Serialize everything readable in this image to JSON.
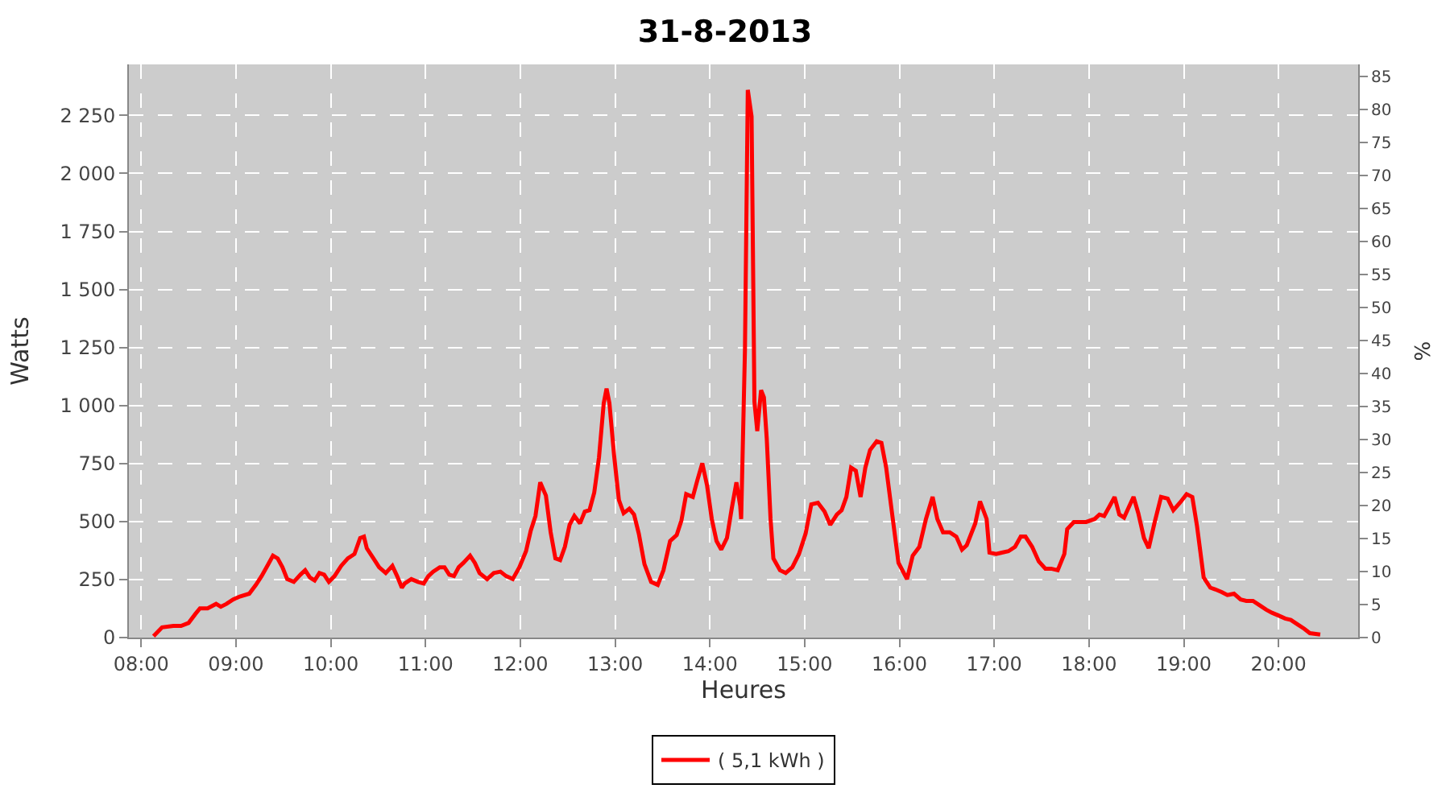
{
  "chart_data": {
    "type": "line",
    "title": "31-8-2013",
    "xlabel": "Heures",
    "ylabel": "Watts",
    "y2label": "%",
    "x": [
      8.13,
      8.22,
      8.34,
      8.42,
      8.5,
      8.57,
      8.62,
      8.7,
      8.79,
      8.84,
      8.9,
      8.97,
      9.04,
      9.14,
      9.21,
      9.27,
      9.34,
      9.39,
      9.44,
      9.49,
      9.54,
      9.61,
      9.68,
      9.73,
      9.78,
      9.83,
      9.88,
      9.93,
      9.98,
      10.04,
      10.11,
      10.18,
      10.25,
      10.31,
      10.35,
      10.38,
      10.45,
      10.51,
      10.58,
      10.65,
      10.7,
      10.75,
      10.78,
      10.85,
      10.92,
      10.98,
      11.03,
      11.08,
      11.15,
      11.2,
      11.25,
      11.3,
      11.35,
      11.4,
      11.47,
      11.52,
      11.57,
      11.65,
      11.72,
      11.79,
      11.85,
      11.92,
      11.99,
      12.06,
      12.11,
      12.16,
      12.21,
      12.27,
      12.32,
      12.37,
      12.42,
      12.47,
      12.52,
      12.57,
      12.63,
      12.68,
      12.73,
      12.78,
      12.83,
      12.88,
      12.91,
      12.94,
      12.99,
      13.04,
      13.09,
      13.15,
      13.2,
      13.25,
      13.31,
      13.38,
      13.45,
      13.51,
      13.58,
      13.65,
      13.7,
      13.75,
      13.82,
      13.87,
      13.92,
      13.97,
      14.02,
      14.07,
      14.12,
      14.18,
      14.23,
      14.28,
      14.32,
      14.33,
      14.37,
      14.4,
      14.44,
      14.47,
      14.5,
      14.54,
      14.57,
      14.6,
      14.64,
      14.67,
      14.74,
      14.8,
      14.87,
      14.94,
      15.01,
      15.07,
      15.14,
      15.21,
      15.27,
      15.34,
      15.39,
      15.44,
      15.49,
      15.54,
      15.59,
      15.64,
      15.69,
      15.76,
      15.81,
      15.86,
      15.93,
      15.99,
      16.08,
      16.14,
      16.21,
      16.28,
      16.35,
      16.4,
      16.46,
      16.53,
      16.6,
      16.66,
      16.71,
      16.8,
      16.85,
      16.92,
      16.95,
      17.02,
      17.08,
      17.15,
      17.22,
      17.28,
      17.33,
      17.4,
      17.47,
      17.54,
      17.6,
      17.67,
      17.74,
      17.77,
      17.84,
      17.9,
      17.97,
      18.06,
      18.11,
      18.16,
      18.22,
      18.27,
      18.32,
      18.37,
      18.42,
      18.47,
      18.52,
      18.58,
      18.63,
      18.69,
      18.76,
      18.83,
      18.89,
      18.96,
      19.03,
      19.09,
      19.14,
      19.21,
      19.28,
      19.33,
      19.4,
      19.46,
      19.53,
      19.6,
      19.66,
      19.73,
      19.8,
      19.87,
      19.93,
      20.0,
      20.07,
      20.13,
      20.2,
      20.27,
      20.33,
      20.44
    ],
    "series": [
      {
        "name": "( 5,1 kWh )",
        "color": "#ff0000",
        "values": [
          6,
          44,
          50,
          50,
          63,
          101,
          126,
          126,
          145,
          133,
          145,
          164,
          177,
          189,
          227,
          265,
          316,
          353,
          341,
          303,
          252,
          240,
          271,
          290,
          259,
          246,
          278,
          271,
          240,
          265,
          309,
          341,
          360,
          429,
          435,
          385,
          341,
          303,
          278,
          309,
          265,
          215,
          233,
          252,
          240,
          233,
          265,
          284,
          303,
          303,
          271,
          265,
          303,
          322,
          353,
          322,
          278,
          252,
          278,
          284,
          265,
          252,
          303,
          372,
          461,
          524,
          669,
          612,
          454,
          341,
          334,
          391,
          486,
          524,
          492,
          543,
          549,
          625,
          776,
          1010,
          1073,
          1010,
          782,
          593,
          536,
          555,
          530,
          448,
          316,
          240,
          227,
          290,
          416,
          442,
          505,
          618,
          606,
          681,
          751,
          656,
          511,
          416,
          379,
          429,
          555,
          669,
          568,
          511,
          1237,
          2360,
          2246,
          1016,
          890,
          1066,
          1035,
          858,
          511,
          341,
          290,
          278,
          303,
          360,
          448,
          574,
          581,
          543,
          486,
          530,
          549,
          606,
          732,
          719,
          606,
          732,
          808,
          846,
          839,
          732,
          511,
          322,
          252,
          353,
          391,
          511,
          606,
          511,
          454,
          454,
          435,
          379,
          398,
          492,
          587,
          511,
          366,
          360,
          366,
          372,
          391,
          435,
          435,
          391,
          328,
          297,
          297,
          290,
          360,
          467,
          498,
          498,
          498,
          511,
          530,
          524,
          568,
          606,
          530,
          517,
          562,
          606,
          536,
          429,
          385,
          492,
          606,
          599,
          549,
          581,
          618,
          606,
          480,
          259,
          215,
          208,
          196,
          183,
          189,
          164,
          158,
          158,
          139,
          120,
          107,
          95,
          82,
          76,
          57,
          38,
          19,
          13
        ]
      }
    ],
    "xlim": [
      7.87,
      20.84
    ],
    "xticks": [
      {
        "value": 8,
        "label": "08:00"
      },
      {
        "value": 9,
        "label": "09:00"
      },
      {
        "value": 10,
        "label": "10:00"
      },
      {
        "value": 11,
        "label": "11:00"
      },
      {
        "value": 12,
        "label": "12:00"
      },
      {
        "value": 13,
        "label": "13:00"
      },
      {
        "value": 14,
        "label": "14:00"
      },
      {
        "value": 15,
        "label": "15:00"
      },
      {
        "value": 16,
        "label": "16:00"
      },
      {
        "value": 17,
        "label": "17:00"
      },
      {
        "value": 18,
        "label": "18:00"
      },
      {
        "value": 19,
        "label": "19:00"
      },
      {
        "value": 20,
        "label": "20:00"
      }
    ],
    "ylim": [
      0,
      2470
    ],
    "yticks": [
      0,
      250,
      500,
      750,
      {
        "value": 1000,
        "label": "1 000"
      },
      {
        "value": 1250,
        "label": "1 250"
      },
      {
        "value": 1500,
        "label": "1 500"
      },
      {
        "value": 1750,
        "label": "1 750"
      },
      {
        "value": 2000,
        "label": "2 000"
      },
      {
        "value": 2250,
        "label": "2 250"
      }
    ],
    "y2lim": [
      0,
      86.8
    ],
    "y2ticks": [
      0,
      5,
      10,
      15,
      20,
      25,
      30,
      35,
      40,
      45,
      50,
      55,
      60,
      65,
      70,
      75,
      80,
      85
    ],
    "grid": true,
    "legend": "bottom",
    "marker": "none",
    "line_style": "solid"
  }
}
